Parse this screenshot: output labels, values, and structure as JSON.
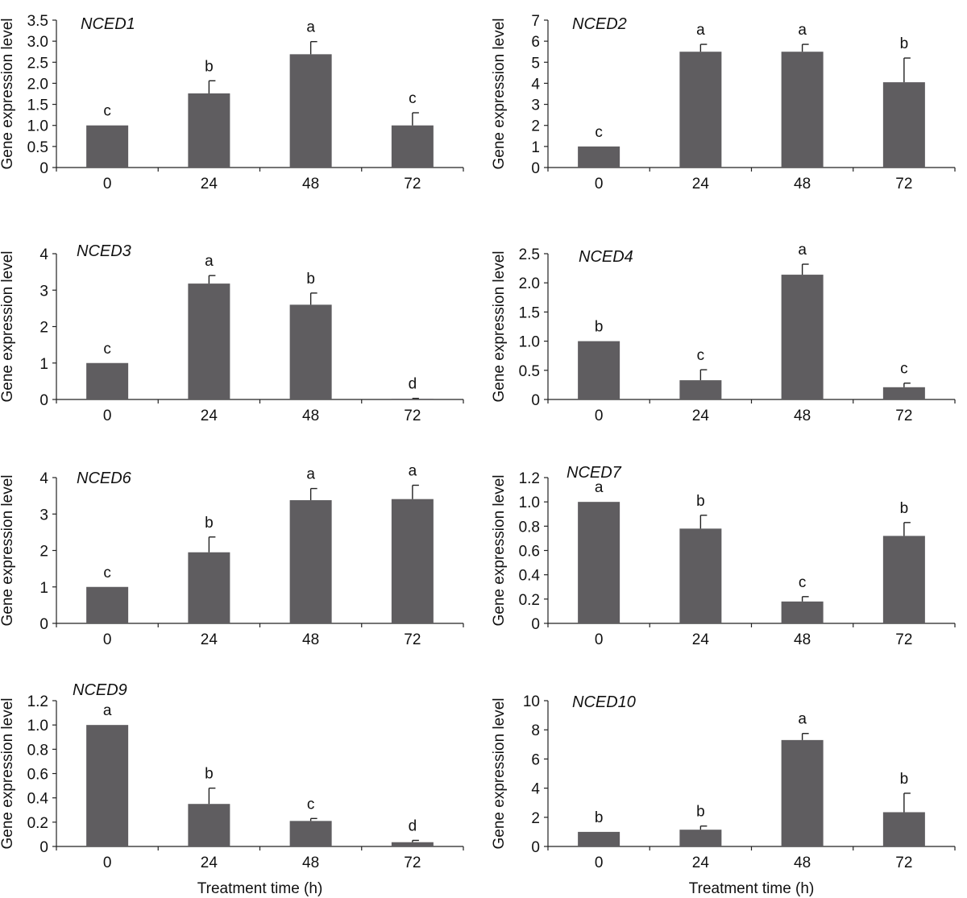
{
  "chart_data": [
    {
      "type": "bar",
      "title": "NCED1",
      "categories": [
        "0",
        "24",
        "48",
        "72"
      ],
      "values": [
        1.0,
        1.76,
        2.69,
        1.0
      ],
      "errors": [
        0,
        0.3,
        0.3,
        0.3
      ],
      "significance": [
        "c",
        "b",
        "a",
        "c"
      ],
      "ylabel": "Gene expression level",
      "xlabel": "",
      "ylim": [
        0,
        3.5
      ],
      "yticks": [
        "0",
        "0.5",
        "1.0",
        "1.5",
        "2.0",
        "2.5",
        "3.0",
        "3.5"
      ],
      "grid": false,
      "bar_color": "#5f5d60"
    },
    {
      "type": "bar",
      "title": "NCED2",
      "categories": [
        "0",
        "24",
        "48",
        "72"
      ],
      "values": [
        1.0,
        5.5,
        5.5,
        4.05
      ],
      "errors": [
        0,
        0.35,
        0.35,
        1.15
      ],
      "significance": [
        "c",
        "a",
        "a",
        "b"
      ],
      "ylabel": "Gene expression level",
      "xlabel": "",
      "ylim": [
        0,
        7
      ],
      "yticks": [
        "0",
        "1",
        "2",
        "3",
        "4",
        "5",
        "6",
        "7"
      ],
      "grid": false,
      "bar_color": "#5f5d60"
    },
    {
      "type": "bar",
      "title": "NCED3",
      "categories": [
        "0",
        "24",
        "48",
        "72"
      ],
      "values": [
        1.0,
        3.18,
        2.6,
        0.02
      ],
      "errors": [
        0,
        0.22,
        0.32,
        0.01
      ],
      "significance": [
        "c",
        "a",
        "b",
        "d"
      ],
      "ylabel": "Gene expression level",
      "xlabel": "",
      "ylim": [
        0,
        4
      ],
      "yticks": [
        "0",
        "1",
        "2",
        "3",
        "4"
      ],
      "grid": false,
      "bar_color": "#5f5d60"
    },
    {
      "type": "bar",
      "title": "NCED4",
      "categories": [
        "0",
        "24",
        "48",
        "72"
      ],
      "values": [
        1.0,
        0.33,
        2.14,
        0.21
      ],
      "errors": [
        0,
        0.18,
        0.18,
        0.07
      ],
      "significance": [
        "b",
        "c",
        "a",
        "c"
      ],
      "ylabel": "Gene expression level",
      "xlabel": "",
      "ylim": [
        0,
        2.5
      ],
      "yticks": [
        "0",
        "0.5",
        "1.0",
        "1.5",
        "2.0",
        "2.5"
      ],
      "grid": false,
      "bar_color": "#5f5d60"
    },
    {
      "type": "bar",
      "title": "NCED6",
      "categories": [
        "0",
        "24",
        "48",
        "72"
      ],
      "values": [
        1.0,
        1.95,
        3.38,
        3.41
      ],
      "errors": [
        0,
        0.42,
        0.32,
        0.38
      ],
      "significance": [
        "c",
        "b",
        "a",
        "a"
      ],
      "ylabel": "Gene expression level",
      "xlabel": "",
      "ylim": [
        0,
        4
      ],
      "yticks": [
        "0",
        "1",
        "2",
        "3",
        "4"
      ],
      "grid": false,
      "bar_color": "#5f5d60"
    },
    {
      "type": "bar",
      "title": "NCED7",
      "categories": [
        "0",
        "24",
        "48",
        "72"
      ],
      "values": [
        1.0,
        0.78,
        0.18,
        0.72
      ],
      "errors": [
        0,
        0.11,
        0.04,
        0.11
      ],
      "significance": [
        "a",
        "b",
        "c",
        "b"
      ],
      "ylabel": "Gene expression level",
      "xlabel": "",
      "ylim": [
        0,
        1.2
      ],
      "yticks": [
        "0",
        "0.2",
        "0.4",
        "0.6",
        "0.8",
        "1.0",
        "1.2"
      ],
      "grid": false,
      "bar_color": "#5f5d60"
    },
    {
      "type": "bar",
      "title": "NCED9",
      "categories": [
        "0",
        "24",
        "48",
        "72"
      ],
      "values": [
        1.0,
        0.35,
        0.21,
        0.035
      ],
      "errors": [
        0,
        0.13,
        0.02,
        0.015
      ],
      "significance": [
        "a",
        "b",
        "c",
        "d"
      ],
      "ylabel": "Gene expression level",
      "xlabel": "Treatment time (h)",
      "ylim": [
        0,
        1.2
      ],
      "yticks": [
        "0",
        "0.2",
        "0.4",
        "0.6",
        "0.8",
        "1.0",
        "1.2"
      ],
      "grid": false,
      "bar_color": "#5f5d60"
    },
    {
      "type": "bar",
      "title": "NCED10",
      "categories": [
        "0",
        "24",
        "48",
        "72"
      ],
      "values": [
        1.0,
        1.15,
        7.3,
        2.35
      ],
      "errors": [
        0,
        0.25,
        0.45,
        1.3
      ],
      "significance": [
        "b",
        "b",
        "a",
        "b"
      ],
      "ylabel": "Gene expression level",
      "xlabel": "Treatment time (h)",
      "ylim": [
        0,
        10
      ],
      "yticks": [
        "0",
        "2",
        "4",
        "6",
        "8",
        "10"
      ],
      "grid": false,
      "bar_color": "#5f5d60"
    }
  ]
}
